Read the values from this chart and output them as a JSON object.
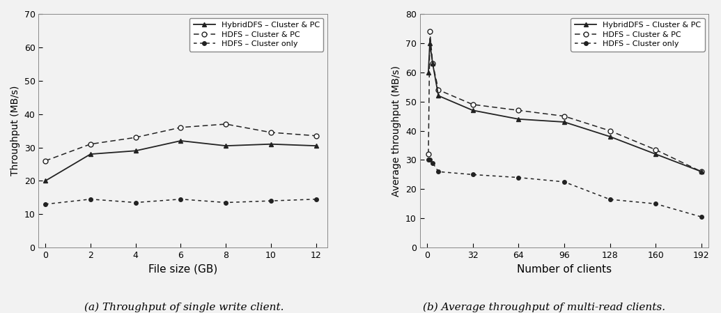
{
  "left": {
    "x": [
      0,
      2,
      4,
      6,
      8,
      10,
      12
    ],
    "hybrid_y": [
      20,
      28,
      29,
      32,
      30.5,
      31,
      30.5
    ],
    "hdfs_cluster_pc_y": [
      26,
      31,
      33,
      36,
      37,
      34.5,
      33.5
    ],
    "hdfs_cluster_only_y": [
      13,
      14.5,
      13.5,
      14.5,
      13.5,
      14,
      14.5
    ],
    "xlabel": "File size (GB)",
    "ylabel": "Throughput (MB/s)",
    "ylim": [
      0,
      70
    ],
    "yticks": [
      0,
      10,
      20,
      30,
      40,
      50,
      60,
      70
    ],
    "xticks": [
      0,
      2,
      4,
      6,
      8,
      10,
      12
    ],
    "xlim": [
      -0.3,
      12.5
    ],
    "caption": "(a) Throughput of single write client."
  },
  "right": {
    "x": [
      1,
      2,
      4,
      8,
      32,
      64,
      96,
      128,
      160,
      192
    ],
    "hybrid_y": [
      60,
      70,
      63,
      52,
      47,
      44,
      43,
      38,
      32,
      26
    ],
    "hdfs_cluster_pc_y": [
      32,
      74,
      63,
      54,
      49,
      47,
      45,
      40,
      33.5,
      26
    ],
    "hdfs_cluster_only_y": [
      30,
      30,
      29,
      26,
      25,
      24,
      22.5,
      16.5,
      15,
      10.5
    ],
    "xlabel": "Number of clients",
    "ylabel": "Average throughput (MB/s)",
    "ylim": [
      0,
      80
    ],
    "yticks": [
      0,
      10,
      20,
      30,
      40,
      50,
      60,
      70,
      80
    ],
    "xticks": [
      0,
      32,
      64,
      96,
      128,
      160,
      192
    ],
    "xlim": [
      -5,
      197
    ],
    "caption": "(b) Average throughput of multi-read clients."
  },
  "legend_labels": [
    "HybridDFS – Cluster & PC",
    "HDFS – Cluster & PC",
    "HDFS – Cluster only"
  ],
  "line_color": "#222222",
  "bg_color": "#f2f2f2"
}
